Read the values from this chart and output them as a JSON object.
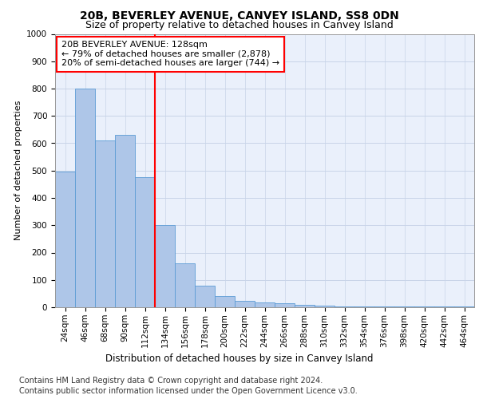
{
  "title1": "20B, BEVERLEY AVENUE, CANVEY ISLAND, SS8 0DN",
  "title2": "Size of property relative to detached houses in Canvey Island",
  "xlabel": "Distribution of detached houses by size in Canvey Island",
  "ylabel": "Number of detached properties",
  "footnote1": "Contains HM Land Registry data © Crown copyright and database right 2024.",
  "footnote2": "Contains public sector information licensed under the Open Government Licence v3.0.",
  "annotation_line1": "20B BEVERLEY AVENUE: 128sqm",
  "annotation_line2": "← 79% of detached houses are smaller (2,878)",
  "annotation_line3": "20% of semi-detached houses are larger (744) →",
  "bar_labels": [
    "24sqm",
    "46sqm",
    "68sqm",
    "90sqm",
    "112sqm",
    "134sqm",
    "156sqm",
    "178sqm",
    "200sqm",
    "222sqm",
    "244sqm",
    "266sqm",
    "288sqm",
    "310sqm",
    "332sqm",
    "354sqm",
    "376sqm",
    "398sqm",
    "420sqm",
    "442sqm",
    "464sqm"
  ],
  "bar_values": [
    495,
    800,
    610,
    630,
    475,
    300,
    160,
    78,
    42,
    22,
    18,
    15,
    10,
    5,
    4,
    3,
    2,
    2,
    2,
    2,
    2
  ],
  "bar_color": "#aec6e8",
  "bar_edge_color": "#5b9bd5",
  "red_line_index": 5,
  "ylim": [
    0,
    1000
  ],
  "yticks": [
    0,
    100,
    200,
    300,
    400,
    500,
    600,
    700,
    800,
    900,
    1000
  ],
  "plot_bg_color": "#eaf0fb",
  "grid_color": "#c8d4e8",
  "title1_fontsize": 10,
  "title2_fontsize": 9,
  "axis_label_fontsize": 8,
  "tick_fontsize": 7.5,
  "annot_fontsize": 8,
  "footnote_fontsize": 7
}
